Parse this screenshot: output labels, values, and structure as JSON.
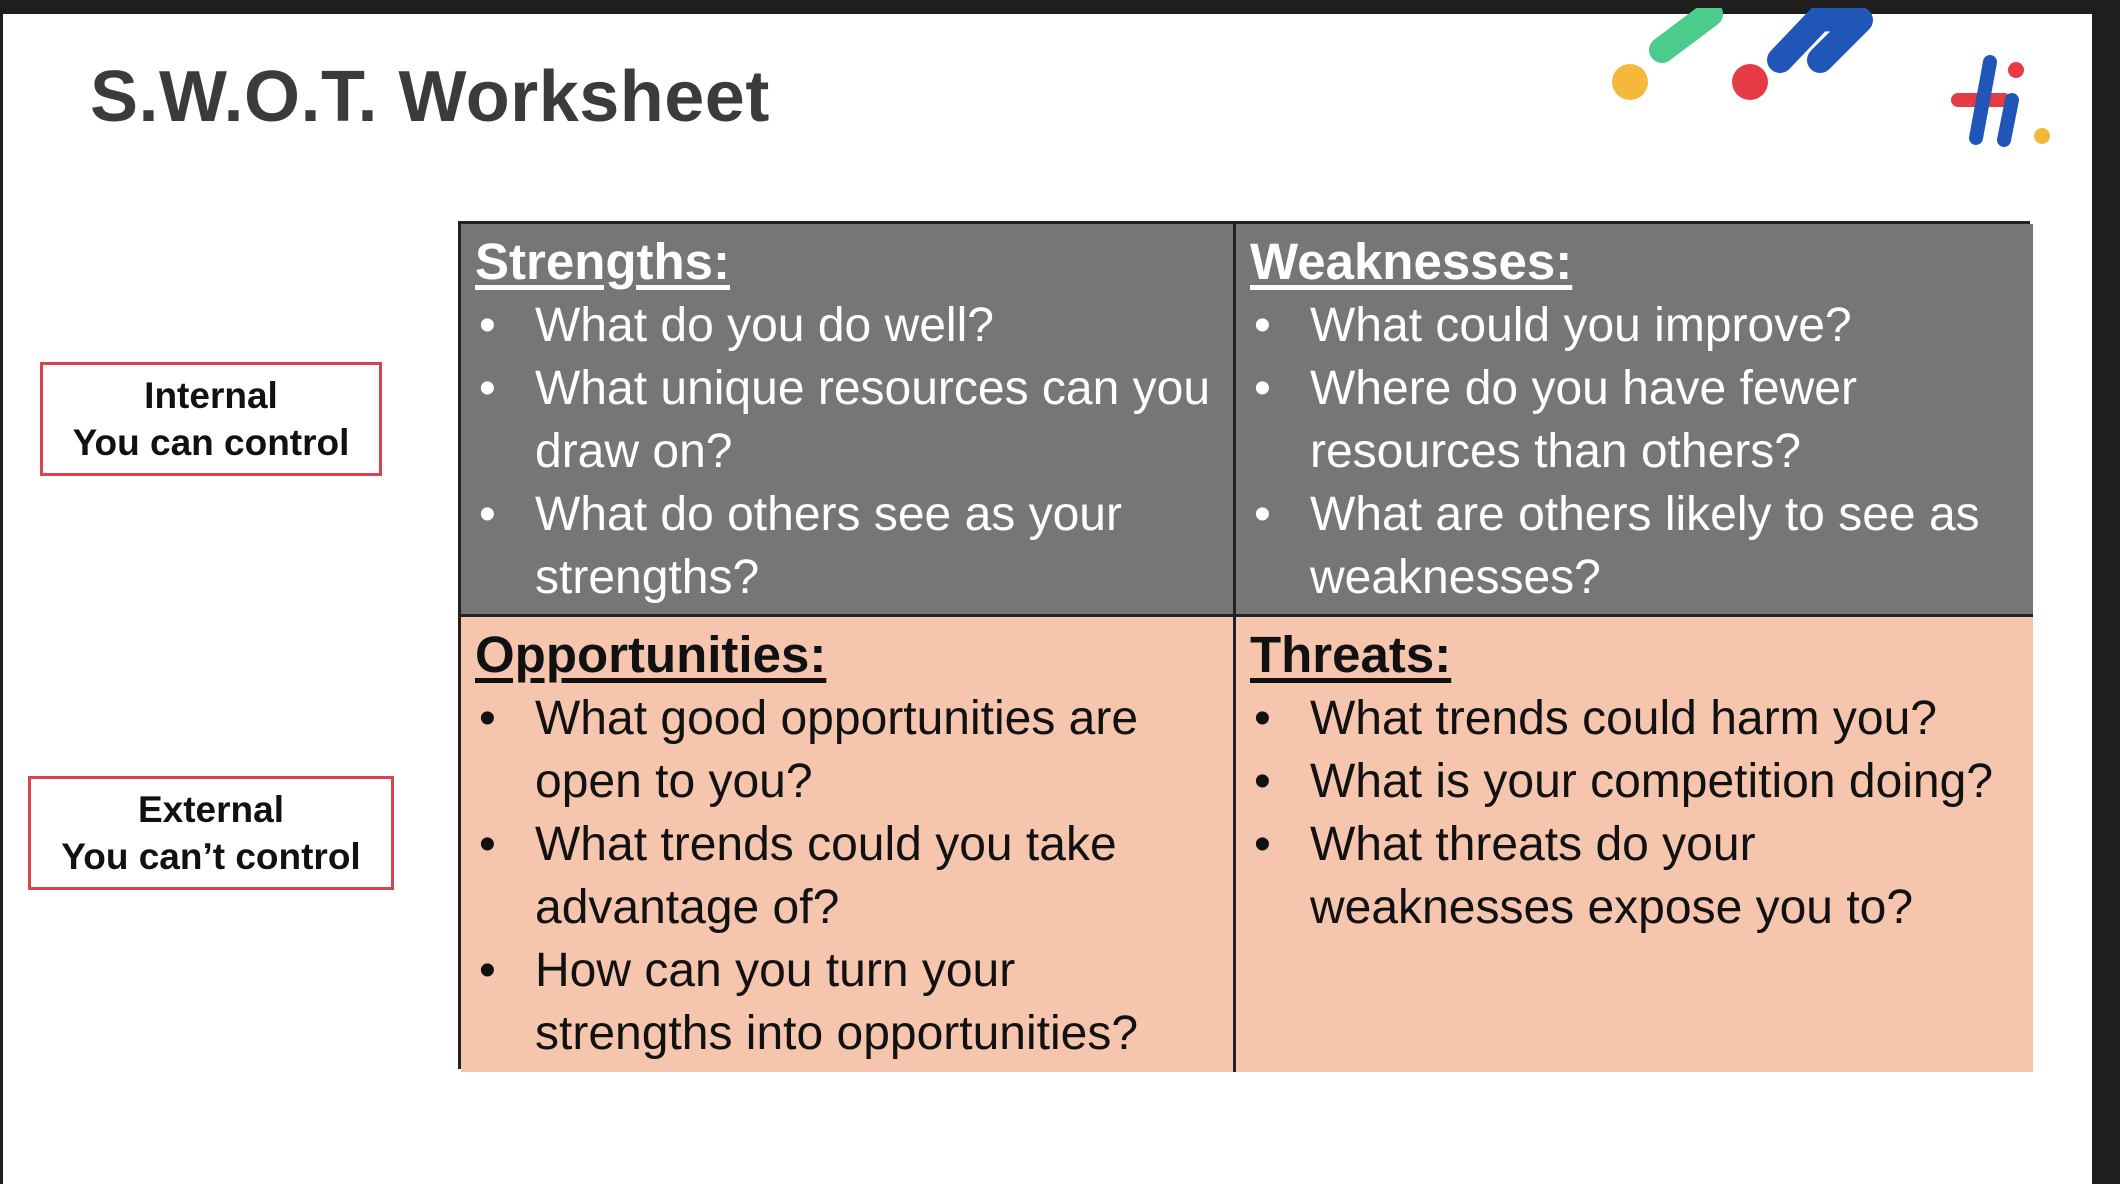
{
  "title": "S.W.O.T. Worksheet",
  "side_labels": {
    "internal": {
      "line1": "Internal",
      "line2": "You can control"
    },
    "external": {
      "line1": "External",
      "line2": "You can’t control"
    }
  },
  "bullet_char": "•",
  "swot": {
    "strengths": {
      "heading": "Strengths:",
      "items": [
        "What do you do well?",
        "What unique resources can you draw on?",
        "What do others see as your strengths?"
      ]
    },
    "weaknesses": {
      "heading": "Weaknesses:",
      "items": [
        "What could you improve?",
        "Where do you have fewer resources than others?",
        "What are others likely to see as weaknesses?"
      ]
    },
    "opportunities": {
      "heading": "Opportunities:",
      "items": [
        "What good opportunities are open to you?",
        "What trends could you take advantage of?",
        "How can you turn your strengths into opportunities?"
      ]
    },
    "threats": {
      "heading": "Threats:",
      "items": [
        "What trends could harm you?",
        "What is your competition doing?",
        "What threats do your weaknesses expose you to?"
      ]
    }
  },
  "colors": {
    "internal_row_bg": "#767676",
    "external_row_bg": "#f5c5ae",
    "label_border": "#d9434e",
    "logo_red": "#e63b45",
    "logo_blue": "#1f56b8",
    "deco_green": "#4ccc8c",
    "deco_yellow": "#f5b83a",
    "deco_red": "#e63b45",
    "deco_blue": "#1f56b8"
  }
}
